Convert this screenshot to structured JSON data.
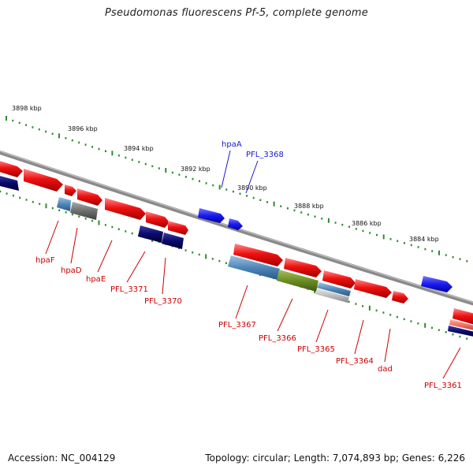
{
  "title": "Pseudomonas fluorescens Pf-5, complete genome",
  "footer": {
    "accession": "Accession: NC_004129",
    "topology": "Topology: circular; Length: 7,074,893 bp; Genes: 6,226"
  },
  "colors": {
    "backbone": "#8a8a8a",
    "ticks": "#2e8b2e",
    "forward_gene": "#ee1111",
    "reverse_gene_dark": "#0a0a6e",
    "reverse_gene_light": "#4f86b8",
    "gray_gene": "#6f6f6f",
    "olive_gene": "#6b8e23",
    "highlight_blue": "#1a1aee",
    "label_red": "#cc0000",
    "label_blue": "#1a1acc"
  },
  "scale_labels": [
    "3898 kbp",
    "3896 kbp",
    "3894 kbp",
    "3892 kbp",
    "3890 kbp",
    "3888 kbp",
    "3886 kbp",
    "3884 kbp"
  ],
  "gene_labels": {
    "hpaA": "hpaA",
    "PFL_3368": "PFL_3368",
    "hpaF": "hpaF",
    "hpaD": "hpaD",
    "hpaE": "hpaE",
    "PFL_3371": "PFL_3371",
    "PFL_3370": "PFL_3370",
    "PFL_3367": "PFL_3367",
    "PFL_3366": "PFL_3366",
    "PFL_3365": "PFL_3365",
    "PFL_3364": "PFL_3364",
    "dad": "dad",
    "PFL_3361": "PFL_3361"
  }
}
